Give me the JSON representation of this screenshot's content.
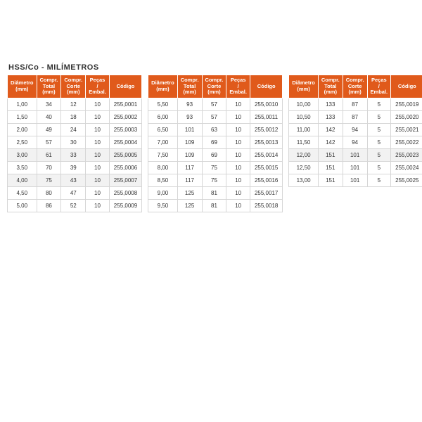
{
  "title": "HSS/Co - MILÍMETROS",
  "colors": {
    "header_bg": "#e05a1b",
    "header_text": "#ffffff",
    "cell_border": "#d6d6d6",
    "text": "#333333",
    "highlight_bg": "#f2f2f2",
    "page_bg": "#ffffff"
  },
  "columns": [
    {
      "key": "diam",
      "label": "Diâmetro\n(mm)"
    },
    {
      "key": "total",
      "label": "Compr.\nTotal\n(mm)"
    },
    {
      "key": "corte",
      "label": "Compr.\nCorte\n(mm)"
    },
    {
      "key": "pecas",
      "label": "Peças /\nEmbal."
    },
    {
      "key": "codigo",
      "label": "Código"
    }
  ],
  "tables": [
    {
      "highlight_rows": [
        4,
        6
      ],
      "rows": [
        [
          "1,00",
          "34",
          "12",
          "10",
          "255,0001"
        ],
        [
          "1,50",
          "40",
          "18",
          "10",
          "255,0002"
        ],
        [
          "2,00",
          "49",
          "24",
          "10",
          "255,0003"
        ],
        [
          "2,50",
          "57",
          "30",
          "10",
          "255,0004"
        ],
        [
          "3,00",
          "61",
          "33",
          "10",
          "255,0005"
        ],
        [
          "3,50",
          "70",
          "39",
          "10",
          "255,0006"
        ],
        [
          "4,00",
          "75",
          "43",
          "10",
          "255,0007"
        ],
        [
          "4,50",
          "80",
          "47",
          "10",
          "255,0008"
        ],
        [
          "5,00",
          "86",
          "52",
          "10",
          "255,0009"
        ]
      ]
    },
    {
      "highlight_rows": [],
      "rows": [
        [
          "5,50",
          "93",
          "57",
          "10",
          "255,0010"
        ],
        [
          "6,00",
          "93",
          "57",
          "10",
          "255,0011"
        ],
        [
          "6,50",
          "101",
          "63",
          "10",
          "255,0012"
        ],
        [
          "7,00",
          "109",
          "69",
          "10",
          "255,0013"
        ],
        [
          "7,50",
          "109",
          "69",
          "10",
          "255,0014"
        ],
        [
          "8,00",
          "117",
          "75",
          "10",
          "255,0015"
        ],
        [
          "8,50",
          "117",
          "75",
          "10",
          "255,0016"
        ],
        [
          "9,00",
          "125",
          "81",
          "10",
          "255,0017"
        ],
        [
          "9,50",
          "125",
          "81",
          "10",
          "255,0018"
        ]
      ]
    },
    {
      "highlight_rows": [
        4
      ],
      "rows": [
        [
          "10,00",
          "133",
          "87",
          "5",
          "255,0019"
        ],
        [
          "10,50",
          "133",
          "87",
          "5",
          "255,0020"
        ],
        [
          "11,00",
          "142",
          "94",
          "5",
          "255,0021"
        ],
        [
          "11,50",
          "142",
          "94",
          "5",
          "255,0022"
        ],
        [
          "12,00",
          "151",
          "101",
          "5",
          "255,0023"
        ],
        [
          "12,50",
          "151",
          "101",
          "5",
          "255,0024"
        ],
        [
          "13,00",
          "151",
          "101",
          "5",
          "255,0025"
        ]
      ]
    }
  ]
}
